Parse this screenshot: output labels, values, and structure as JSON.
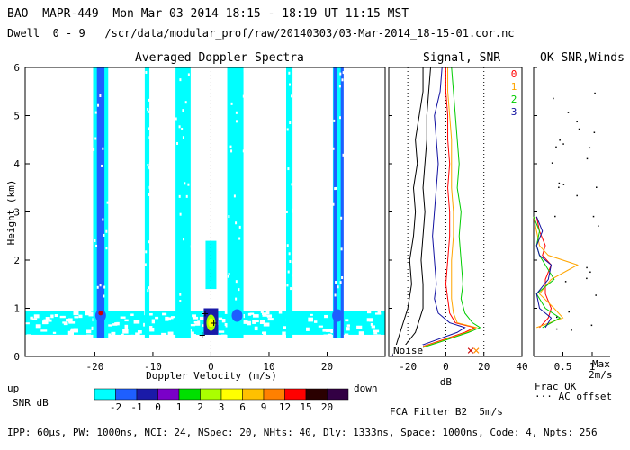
{
  "header": {
    "line1": "BAO  MAPR-449  Mon Mar 03 2014 18:15 - 18:19 UT 11:15 MST",
    "line2": "Dwell  0 - 9   /scr/data/modular_prof/raw/20140303/03-Mar-2014_18-15-01.cor.nc"
  },
  "panels": {
    "spectra_title": "Averaged Doppler Spectra",
    "signal_title": "Signal, SNR",
    "ok_title": "OK SNR,Winds"
  },
  "labels": {
    "up": "up",
    "down": "down",
    "snr_db": "SNR dB",
    "noise": "Noise",
    "fca_filter": "FCA Filter B2  5m/s",
    "frac_ok": "Frac OK",
    "ac_offset": "··· AC offset",
    "max": "Max",
    "max_speed": "2m/s"
  },
  "footer": "IPP: 60μs, PW: 1000ns, NCI: 24, NSpec: 20, NHts: 40, Dly: 1333ns, Space: 1000ns, Code: 4, Npts: 256",
  "colors": {
    "cyan": "#00ffff",
    "blue": "#1e5fff",
    "navy": "#1a1aa8",
    "red_line": "#ff0000",
    "orange_line": "#ffa500",
    "green_line": "#00cc00",
    "blue_line": "#1010a0"
  },
  "chart_data": [
    {
      "type": "heatmap",
      "title": "Averaged Doppler Spectra",
      "xlabel": "Doppler Velocity (m/s)",
      "ylabel": "Height (km)",
      "xlim": [
        -32,
        30
      ],
      "ylim": [
        0,
        6
      ],
      "xticks": [
        -20,
        -10,
        0,
        10,
        20
      ],
      "yticks": [
        0,
        1,
        2,
        3,
        4,
        5,
        6
      ],
      "colorbar": {
        "label": "SNR dB",
        "ticks": [
          "-2",
          "-1",
          "0",
          "1",
          "2",
          "3",
          "6",
          "9",
          "12",
          "15",
          "20"
        ],
        "colors": [
          "#00ffff",
          "#1e5fff",
          "#1a1aa8",
          "#7a00c8",
          "#00e000",
          "#aaff00",
          "#ffff00",
          "#ffc000",
          "#ff8000",
          "#ff0000",
          "#2a0000",
          "#330044"
        ]
      },
      "streaks": [
        {
          "v": -19.0,
          "w": 2.6,
          "color": "cyan"
        },
        {
          "v": -19.0,
          "w": 1.3,
          "color": "blue"
        },
        {
          "v": -11.0,
          "w": 0.8,
          "color": "cyan"
        },
        {
          "v": -4.8,
          "w": 2.6,
          "color": "cyan"
        },
        {
          "v": 4.2,
          "w": 2.8,
          "color": "cyan"
        },
        {
          "v": 13.5,
          "w": 1.1,
          "color": "cyan"
        },
        {
          "v": 21.8,
          "w": 1.6,
          "color": "cyan"
        },
        {
          "v": 21.4,
          "w": 0.6,
          "color": "blue"
        },
        {
          "v": 22.6,
          "w": 0.5,
          "color": "blue"
        }
      ],
      "band": {
        "h0": 0.45,
        "h1": 0.95
      }
    },
    {
      "type": "line",
      "title": "Signal, SNR",
      "xlabel": "dB",
      "xlim": [
        -30,
        40
      ],
      "ylim": [
        0,
        6
      ],
      "xticks": [
        -20,
        0,
        20,
        40
      ],
      "series": [
        {
          "name": "0",
          "color": "red_line",
          "h": [
            0.0,
            0.3,
            0.5,
            0.6,
            0.7,
            0.9,
            1.2,
            1.5,
            2.0,
            2.5,
            3.0,
            3.5,
            4.0,
            4.5,
            5.0,
            5.5,
            6.0
          ],
          "x": [
            -28,
            -5,
            10,
            15,
            5,
            2,
            1,
            0,
            1,
            2,
            2,
            1,
            2,
            1,
            1,
            0,
            0
          ]
        },
        {
          "name": "1",
          "color": "orange_line",
          "h": [
            0.0,
            0.3,
            0.5,
            0.6,
            0.7,
            0.9,
            1.2,
            1.5,
            2.0,
            2.5,
            3.0,
            3.5,
            4.0,
            4.5,
            5.0,
            5.5,
            6.0
          ],
          "x": [
            -28,
            -4,
            11,
            16,
            6,
            4,
            3,
            3,
            3,
            4,
            4,
            3,
            3,
            3,
            2,
            1,
            1
          ]
        },
        {
          "name": "2",
          "color": "green_line",
          "h": [
            0.0,
            0.3,
            0.5,
            0.6,
            0.7,
            0.9,
            1.2,
            1.5,
            2.0,
            2.5,
            3.0,
            3.5,
            4.0,
            4.5,
            5.0,
            5.5,
            6.0
          ],
          "x": [
            -27,
            -3,
            12,
            18,
            14,
            10,
            8,
            9,
            8,
            7,
            8,
            6,
            7,
            6,
            5,
            4,
            3
          ]
        },
        {
          "name": "3",
          "color": "blue_line",
          "h": [
            0.0,
            0.3,
            0.5,
            0.6,
            0.7,
            0.9,
            1.2,
            1.5,
            2.0,
            2.5,
            3.0,
            3.5,
            4.0,
            4.5,
            5.0,
            5.5,
            6.0
          ],
          "x": [
            -29,
            -8,
            6,
            10,
            2,
            -4,
            -6,
            -5,
            -6,
            -7,
            -6,
            -5,
            -4,
            -5,
            -6,
            -3,
            -2
          ]
        }
      ],
      "noise_lines": [
        {
          "h": [
            0.0,
            0.5,
            1.0,
            1.5,
            2.0,
            2.5,
            3.0,
            3.5,
            4.0,
            4.5,
            5.0,
            5.5,
            6.0
          ],
          "x": [
            -28,
            -24,
            -20,
            -18,
            -19,
            -17,
            -16,
            -17,
            -15,
            -16,
            -14,
            -12,
            -12
          ]
        },
        {
          "h": [
            0.0,
            0.5,
            1.0,
            1.5,
            2.0,
            2.5,
            3.0,
            3.5,
            4.0,
            4.5,
            5.0,
            5.5,
            6.0
          ],
          "x": [
            -26,
            -16,
            -12,
            -12,
            -13,
            -12,
            -11,
            -12,
            -11,
            -10,
            -10,
            -9,
            -8
          ]
        }
      ]
    },
    {
      "type": "line",
      "title": "OK SNR,Winds",
      "xlabel": "Frac OK",
      "xlim": [
        0,
        1
      ],
      "ylim": [
        0,
        6
      ],
      "xticks": [
        0.5,
        1
      ],
      "xticklabels": [
        "0.5",
        "1"
      ],
      "series": [
        {
          "name": "0",
          "color": "red_line",
          "h": [
            0.6,
            0.8,
            1.0,
            1.3,
            1.6,
            1.9,
            2.1,
            2.3,
            2.6,
            2.9
          ],
          "x": [
            0.1,
            0.25,
            0.3,
            0.2,
            0.2,
            0.3,
            0.15,
            0.2,
            0.1,
            0.05
          ]
        },
        {
          "name": "1",
          "color": "orange_line",
          "h": [
            0.6,
            0.8,
            1.0,
            1.3,
            1.6,
            1.9,
            2.1,
            2.3,
            2.6,
            2.9
          ],
          "x": [
            0.05,
            0.5,
            0.35,
            0.1,
            0.3,
            0.75,
            0.25,
            0.1,
            0.05,
            0.0
          ]
        },
        {
          "name": "2",
          "color": "green_line",
          "h": [
            0.6,
            0.8,
            1.0,
            1.3,
            1.6,
            1.9,
            2.1,
            2.3,
            2.6,
            2.9
          ],
          "x": [
            0.15,
            0.45,
            0.2,
            0.05,
            0.35,
            0.2,
            0.1,
            0.05,
            0.1,
            0.0
          ]
        },
        {
          "name": "3",
          "color": "blue_line",
          "h": [
            0.6,
            0.8,
            1.0,
            1.3,
            1.6,
            1.9,
            2.1,
            2.3,
            2.6,
            2.9
          ],
          "x": [
            0.2,
            0.3,
            0.1,
            0.05,
            0.25,
            0.3,
            0.1,
            0.05,
            0.15,
            0.05
          ]
        }
      ]
    }
  ]
}
